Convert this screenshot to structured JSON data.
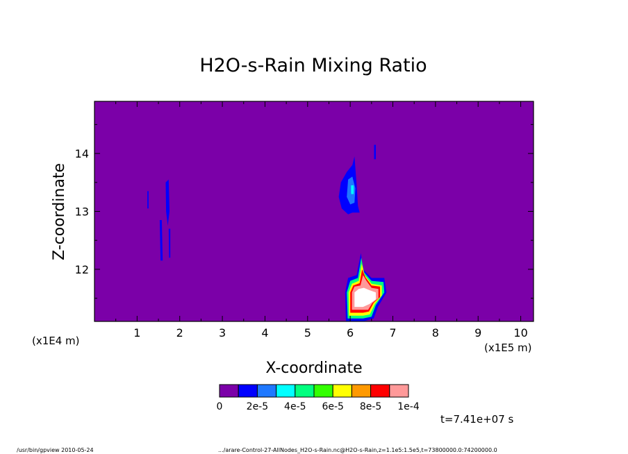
{
  "chart_data": {
    "type": "heatmap",
    "title": "H2O-s-Rain Mixing Ratio",
    "xlabel": "X-coordinate",
    "ylabel": "Z-coordinate",
    "x_scale_label": "(x1E5 m)",
    "y_scale_label": "(x1E4 m)",
    "xlim": [
      0,
      10.3
    ],
    "ylim": [
      11.1,
      14.9
    ],
    "x_ticks": [
      "1",
      "2",
      "3",
      "4",
      "5",
      "6",
      "7",
      "8",
      "9",
      "10"
    ],
    "y_ticks": [
      "12",
      "13",
      "14"
    ],
    "background_value": 0,
    "colorbar": {
      "colors": [
        "#7b00a8",
        "#0000ff",
        "#1e78ff",
        "#00ffff",
        "#00ff7f",
        "#33ff00",
        "#ffff00",
        "#ff9900",
        "#ff0000",
        "#ff9999"
      ],
      "labels": [
        "0",
        "2e-5",
        "4e-5",
        "6e-5",
        "8e-5",
        "1e-4"
      ]
    },
    "features": [
      {
        "x": 1.25,
        "z": 13.2,
        "level": 1
      },
      {
        "x": 1.55,
        "z": 12.45,
        "level": 1
      },
      {
        "x": 1.72,
        "z": 13.05,
        "level": 1
      },
      {
        "x": 1.8,
        "z": 12.5,
        "level": 1
      },
      {
        "x": 6.0,
        "z": 13.3,
        "level": 1
      },
      {
        "x": 6.1,
        "z": 13.3,
        "level": 3
      },
      {
        "x": 6.58,
        "z": 14.02,
        "level": 1
      },
      {
        "x": 6.3,
        "z": 11.55,
        "level": 9
      },
      {
        "x": 6.2,
        "z": 11.85,
        "level": 7
      }
    ]
  },
  "time_label": "t=7.41e+07 s",
  "footer_left": "/usr/bin/gpview  2010-05-24",
  "footer_right": ".../arare-Control-27-AllNodes_H2O-s-Rain.nc@H2O-s-Rain,z=1.1e5:1.5e5,t=73800000.0:74200000.0"
}
